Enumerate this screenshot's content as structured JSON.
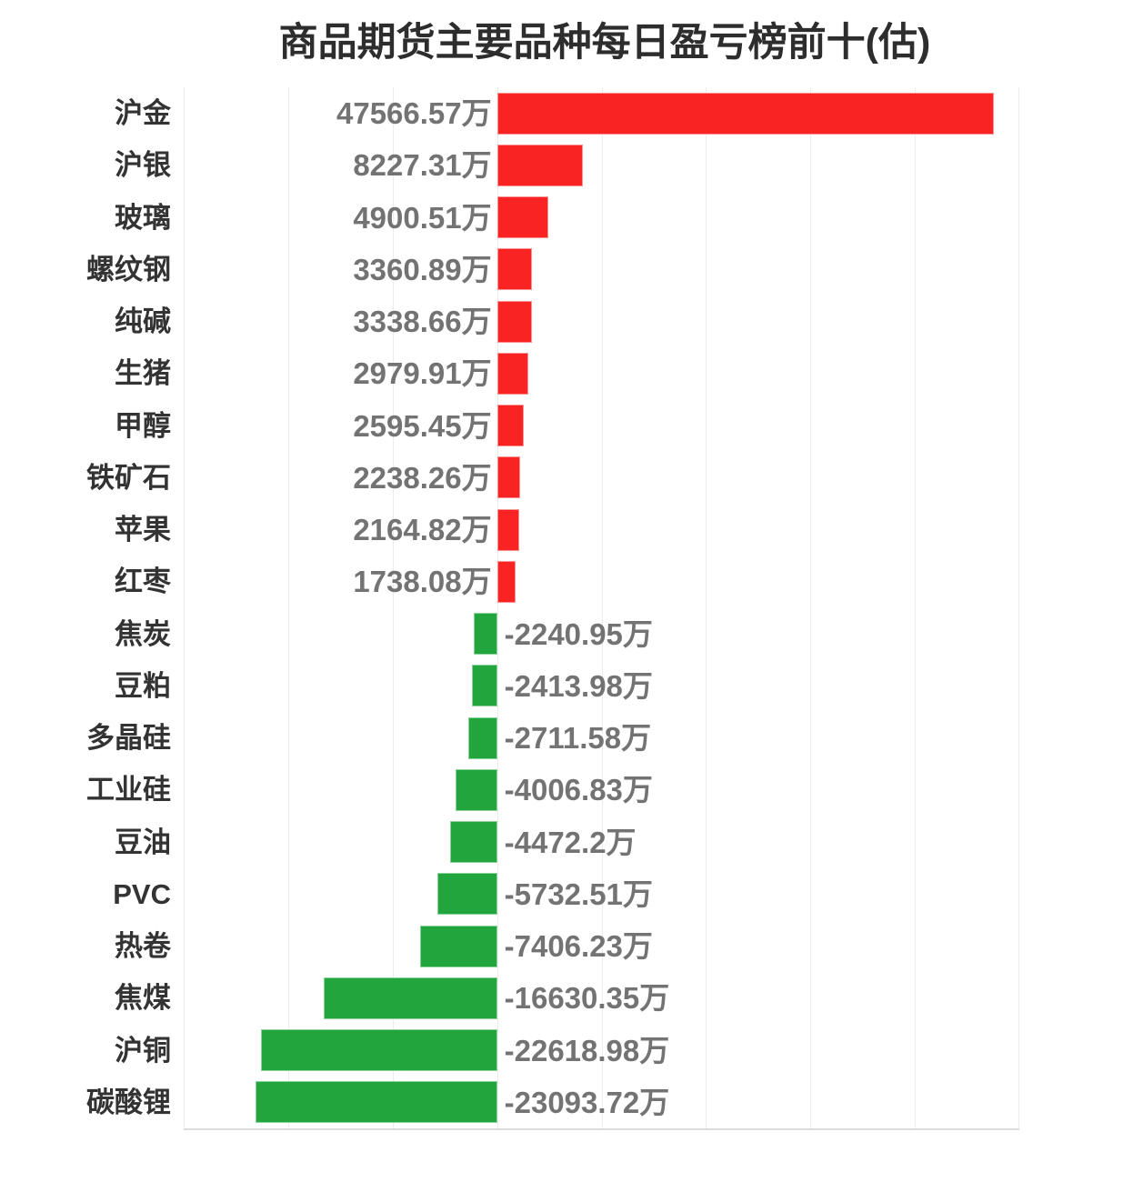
{
  "title": "商品期货主要品种每日盈亏榜前十(估)",
  "colors": {
    "positive_bar": "#f82322",
    "negative_bar": "#21a53c",
    "gridline": "#ececec",
    "axis_line": "#dcdcdc",
    "category_label": "#333333",
    "value_label": "#737373",
    "title_text": "#2d2d2d",
    "background": "#ffffff"
  },
  "chart_data": {
    "type": "bar",
    "orientation": "horizontal",
    "title": "商品期货主要品种每日盈亏榜前十(估)",
    "unit": "万",
    "xlim": [
      -30000,
      50000
    ],
    "grid_interval": 10000,
    "grid": "on",
    "legend": "none",
    "categories": [
      "沪金",
      "沪银",
      "玻璃",
      "螺纹钢",
      "纯碱",
      "生猪",
      "甲醇",
      "铁矿石",
      "苹果",
      "红枣",
      "焦炭",
      "豆粕",
      "多晶硅",
      "工业硅",
      "豆油",
      "PVC",
      "热卷",
      "焦煤",
      "沪铜",
      "碳酸锂"
    ],
    "values": [
      47566.57,
      8227.31,
      4900.51,
      3360.89,
      3338.66,
      2979.91,
      2595.45,
      2238.26,
      2164.82,
      1738.08,
      -2240.95,
      -2413.98,
      -2711.58,
      -4006.83,
      -4472.2,
      -5732.51,
      -7406.23,
      -16630.35,
      -22618.98,
      -23093.72
    ],
    "labels": [
      "47566.57万",
      "8227.31万",
      "4900.51万",
      "3360.89万",
      "3338.66万",
      "2979.91万",
      "2595.45万",
      "2238.26万",
      "2164.82万",
      "1738.08万",
      "-2240.95万",
      "-2413.98万",
      "-2711.58万",
      "-4006.83万",
      "-4472.2万",
      "-5732.51万",
      "-7406.23万",
      "-16630.35万",
      "-22618.98万",
      "-23093.72万"
    ]
  }
}
